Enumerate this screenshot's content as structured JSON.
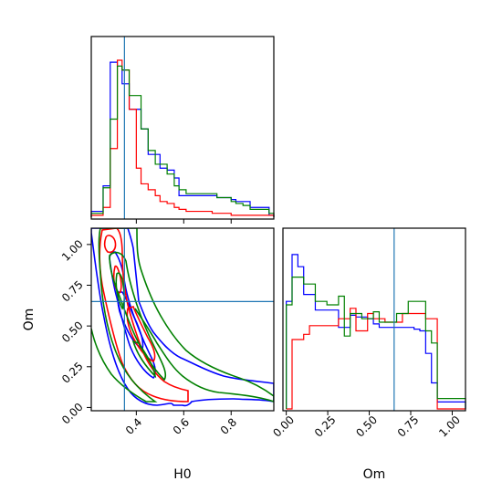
{
  "chart_data": {
    "type": "corner",
    "parameters": [
      "H0",
      "Om"
    ],
    "truths": {
      "H0": 0.35,
      "Om": 0.65
    },
    "colors": {
      "blue": "#0000ff",
      "red": "#ff0000",
      "green": "#008000",
      "truth": "#1f77b4"
    },
    "panels": [
      {
        "id": "hist-H0",
        "type": "step-histogram",
        "xlim": [
          0.21,
          0.98
        ],
        "xticks": [
          0.4,
          0.6,
          0.8
        ],
        "bin_edges": [
          0.21,
          0.24,
          0.26,
          0.29,
          0.32,
          0.34,
          0.37,
          0.4,
          0.42,
          0.45,
          0.48,
          0.5,
          0.53,
          0.56,
          0.58,
          0.61,
          0.64,
          0.66,
          0.69,
          0.72,
          0.74,
          0.77,
          0.8,
          0.82,
          0.85,
          0.88,
          0.9,
          0.93,
          0.96,
          0.98
        ],
        "series": [
          {
            "color": "blue",
            "values": [
              3,
              3,
              16,
              79,
              77,
              68,
              55,
              55,
              45,
              32,
              32,
              25,
              24,
              20,
              11,
              11,
              11,
              11,
              11,
              11,
              10,
              10,
              9,
              8,
              8,
              5,
              5,
              5,
              1
            ]
          },
          {
            "color": "red",
            "values": [
              1,
              1,
              5,
              35,
              80,
              75,
              55,
              25,
              17,
              14,
              11,
              8,
              7,
              5,
              4,
              3,
              3,
              3,
              3,
              2,
              2,
              2,
              1,
              1,
              1,
              1,
              1,
              1,
              1
            ]
          },
          {
            "color": "green",
            "values": [
              2,
              2,
              15,
              50,
              77,
              75,
              62,
              62,
              45,
              34,
              27,
              27,
              22,
              16,
              14,
              12,
              12,
              12,
              12,
              12,
              10,
              10,
              8,
              7,
              6,
              4,
              4,
              4,
              2
            ]
          }
        ]
      },
      {
        "id": "contour-H0-Om",
        "type": "contour",
        "xlim": [
          0.21,
          0.98
        ],
        "ylim": [
          -0.02,
          1.1
        ],
        "xticks": [
          0.4,
          0.6,
          0.8
        ],
        "yticks": [
          0.0,
          0.25,
          0.5,
          0.75,
          1.0
        ]
      },
      {
        "id": "hist-Om",
        "type": "step-histogram",
        "xlim": [
          -0.02,
          1.08
        ],
        "xticks": [
          0.0,
          0.25,
          0.5,
          0.75,
          1.0
        ],
        "bin_edges": [
          0.0,
          0.035,
          0.07,
          0.105,
          0.14,
          0.175,
          0.21,
          0.245,
          0.28,
          0.315,
          0.35,
          0.385,
          0.42,
          0.455,
          0.49,
          0.525,
          0.56,
          0.595,
          0.63,
          0.665,
          0.7,
          0.735,
          0.77,
          0.805,
          0.84,
          0.875,
          0.91,
          0.945,
          0.98,
          1.015,
          1.08
        ],
        "series": [
          {
            "color": "blue",
            "values": [
              62,
              89,
              82,
              66,
              66,
              57,
              57,
              57,
              57,
              47,
              47,
              54,
              53,
              53,
              52,
              49,
              47,
              47,
              47,
              47,
              47,
              47,
              46,
              45,
              32,
              15,
              4,
              4,
              4,
              4
            ]
          },
          {
            "color": "red",
            "values": [
              0,
              40,
              40,
              43,
              48,
              48,
              48,
              48,
              48,
              52,
              52,
              58,
              45,
              45,
              55,
              52,
              52,
              50,
              50,
              50,
              55,
              55,
              55,
              55,
              52,
              52,
              0,
              0,
              0,
              0
            ]
          },
          {
            "color": "green",
            "values": [
              60,
              76,
              76,
              72,
              72,
              62,
              62,
              60,
              60,
              65,
              42,
              55,
              55,
              52,
              52,
              56,
              50,
              50,
              50,
              55,
              55,
              62,
              62,
              62,
              45,
              38,
              6,
              6,
              6,
              6
            ]
          }
        ]
      }
    ]
  },
  "labels": {
    "xlabel_left": "H0",
    "xlabel_right": "Om",
    "ylabel_left": "Om"
  }
}
